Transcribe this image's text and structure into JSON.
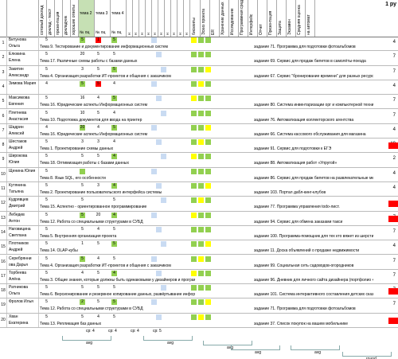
{
  "header": {
    "col_labels": [
      "сотовый доклад",
      "доклад - текст",
      "презентация",
      "докладчик",
      "хорошие ответы"
    ],
    "topic_cols": [
      "тема 2",
      "тема 3",
      "тема 4"
    ],
    "small_cols": [
      "№",
      "оц",
      "№",
      "оц",
      "№",
      "оц"
    ],
    "flags_cols": [
      "н",
      "н",
      "н",
      "н",
      "н",
      "н",
      "н",
      "н",
      "н",
      "н"
    ],
    "right_cols": [
      "бисквиты",
      "Эскиз проекта",
      "ER",
      "Хранение данных",
      "Исследование",
      "Программная среда",
      "Интерфейс",
      "Отчет",
      "Презентация",
      "Защита",
      "Экзамен",
      "Средняя оценка",
      "на автомат"
    ],
    "title": "1 ру"
  },
  "rows": [
    {
      "n": "1",
      "name": [
        "Битунова",
        "Ольга"
      ],
      "topic": "Тема 9. Тестирование и документирование информационных систем",
      "proj": "задание 71. Программа для подготовки фотоальбомов",
      "total": "4"
    },
    {
      "n": "2",
      "name": [
        "Елюкина",
        "Елена"
      ],
      "topic": "Тема 17. Различные схемы работы с базами данных",
      "proj": "задание 69. Сервис для продаж билетов в самолёты-поезда",
      "total": "7"
    },
    {
      "n": "3",
      "name": [
        "Закитин",
        "Александр"
      ],
      "topic": "Тема 4. Организация разработки ИТ-проектов и общения с заказчиком",
      "proj": "задание 67. Сервис \"бронирование времени\" для разных ресурсов",
      "total": "7"
    },
    {
      "n": "4",
      "name": [
        "Зимова Мария",
        ""
      ],
      "topic": "",
      "proj": "",
      "total": "4"
    },
    {
      "n": "5",
      "name": [
        "Максимова",
        "Евгения"
      ],
      "topic": "Тема 16. Юридические аспекты Информационных систем",
      "proj": "задание 80. Система инвентаризации орг и компьютерной техники",
      "total": "7"
    },
    {
      "n": "6",
      "name": [
        "Плетнева",
        "Анастасия"
      ],
      "topic": "Тема 10. Подготовка документов для ввода на принтер",
      "proj": "задание 76. Автоматизация коллекторского агентства",
      "total": "7"
    },
    {
      "n": "7",
      "name": [
        "Шадрин",
        "Алексей"
      ],
      "topic": "Тема 16. Юридические аспекты Информационных систем",
      "proj": "задание 66. Система кассового обслуживания для магазина",
      "total": "4"
    },
    {
      "n": "8",
      "name": [
        "Шестаков",
        "Андрей"
      ],
      "topic": "Тема 1. Проектирование схемы данных",
      "proj": "задание 91. Сервис для подготовки к ЕГЭ",
      "total": "19"
    },
    {
      "n": "9",
      "name": [
        "Широкова",
        "Юлия"
      ],
      "topic": "Тема 18. Оптимизация работы с базами данных",
      "proj": "задание 88. Автоматизация работ «Упругой»",
      "total": "2"
    },
    {
      "n": "10",
      "name": [
        "Щенина Юлия",
        ""
      ],
      "topic": "Тема 8. Язык SQL, его особенности",
      "proj": "задание 86. Сервис для продаж билетов на развлекательные мероприятия",
      "total": "4"
    },
    {
      "n": "11",
      "name": [
        "Кутянина",
        "Татьяна"
      ],
      "topic": "Тема 2. Проектирование пользовательского интерфейса системы",
      "proj": "задание 103. Портал дабл-кинг-клубов",
      "total": "4"
    },
    {
      "n": "12",
      "name": [
        "Кудрявцев",
        "Дмитрий"
      ],
      "topic": "Тема 15. Аспектно - ориентированное программирование",
      "proj": "задание 77. Программа управления todo-лист.",
      "total": ""
    },
    {
      "n": "13",
      "name": [
        "Лебедев",
        "Антон"
      ],
      "topic": "Тема 12. Работа со специальными структурами в СУБД",
      "proj": "задание 94. Сервис для обмена заказами такси",
      "total": "7"
    },
    {
      "n": "14",
      "name": [
        "Наговицина",
        "Светлана"
      ],
      "topic": "Тема 5. Внутренняя организация проекта",
      "proj": "задание 100. Программа-помощник для тех кто вяжет из шерсти",
      "total": "7"
    },
    {
      "n": "15",
      "name": [
        "Плотников",
        "Андрей"
      ],
      "topic": "Тема 14. OLAP-кубы",
      "proj": "задание 11. Доска объявлений о продаже недвижимости",
      "total": "4"
    },
    {
      "n": "16",
      "name": [
        "Серебрянни",
        "ова Дарья"
      ],
      "topic": "Тема 4. Организация разработки ИТ-проектов и общения с заказчиком",
      "proj": "задание 99. Социальная сеть садоводов-огородников",
      "total": "7"
    },
    {
      "n": "17",
      "name": [
        "Торбеева",
        "Алёна"
      ],
      "topic": "Тема 3. Общие знания, которые должны быть одинаковыми у дизайнеров и программистов.",
      "proj": "задание 96. Дневник для личного сайта дизайнера (портфолио + новости)",
      "total": "7"
    },
    {
      "n": "18",
      "name": [
        "Ратникова",
        "Ольга"
      ],
      "topic": "Тема 6. Версионирование и резервное копирование данных, развёртывание информационных систем",
      "proj": "задание 101. Система интерактивного составления детских сказок",
      "total": "7"
    },
    {
      "n": "19",
      "name": [
        "Фролов Илья",
        ""
      ],
      "topic": "Тема 12. Работа со специальными структурами в СУБД",
      "proj": "задание 71. Программа для подготовки фотоальбомов",
      "total": "7"
    },
    {
      "n": "20",
      "name": [
        "Хван",
        "Екатерина"
      ],
      "topic": "Тема 13. Репликация баз данных",
      "proj": "задание 37. Список покупок на вашем мобильнике",
      "total": ""
    }
  ],
  "footer": {
    "labels": [
      "cp:",
      "cp:",
      "cp:",
      "cp:"
    ],
    "vals": [
      "4",
      "4",
      "4",
      "5"
    ],
    "avg_labels": [
      "avg",
      "avg",
      "avg",
      "avg",
      "avg",
      "round"
    ]
  }
}
